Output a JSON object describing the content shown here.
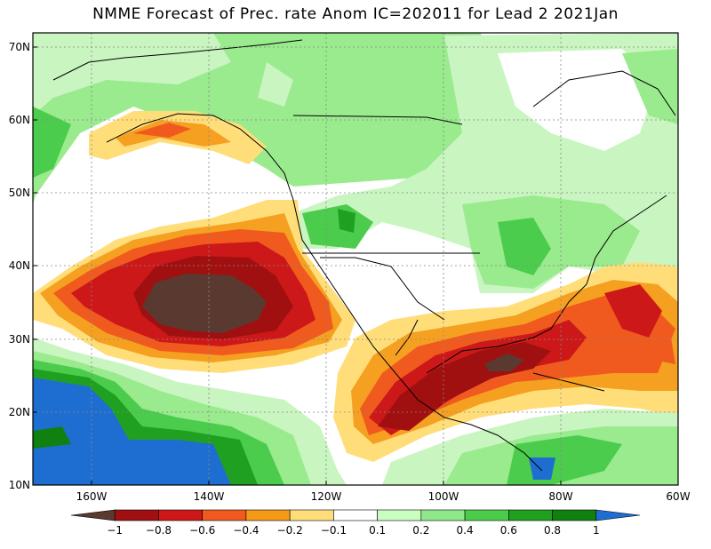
{
  "title": "NMME Forecast of Prec. rate Anom IC=202011 for Lead 2 2021Jan",
  "lat_labels": [
    "70N",
    "60N",
    "50N",
    "40N",
    "30N",
    "20N",
    "10N"
  ],
  "lon_labels": [
    "160W",
    "140W",
    "120W",
    "100W",
    "80W",
    "60W"
  ],
  "colorbar": {
    "labels": [
      "−1",
      "−0.8",
      "−0.6",
      "−0.4",
      "−0.2",
      "−0.1",
      "0.1",
      "0.2",
      "0.4",
      "0.6",
      "0.8",
      "1"
    ],
    "colors": [
      "#5a3a2e",
      "#a01010",
      "#cc1818",
      "#f05a1e",
      "#f59a18",
      "#ffde7a",
      "#ffffff",
      "#c8ffc0",
      "#8ee88a",
      "#4ccc4c",
      "#20a020",
      "#108010",
      "#1e6ed2"
    ]
  },
  "colors": {
    "ocean_blue": "#1e6ed2",
    "dark_green": "#108a10",
    "green": "#30b030",
    "light_green": "#9aea8e",
    "pale_green": "#c8f5c0",
    "yellow": "#ffe070",
    "orange": "#f5a020",
    "red_orange": "#f05a1e",
    "red": "#c81818",
    "brown": "#5a3a30"
  }
}
